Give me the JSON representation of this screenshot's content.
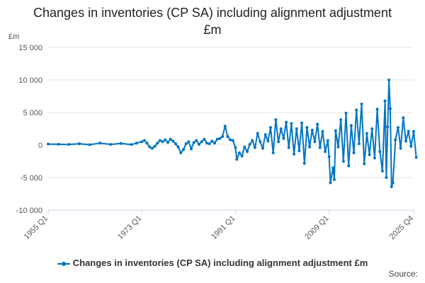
{
  "chart_data": {
    "type": "line",
    "title": "Changes in inventories (CP SA) including alignment adjustment £m",
    "ylabel": "£m",
    "xlabel": "",
    "ylim": [
      -10000,
      15000
    ],
    "yticks": [
      15000,
      10000,
      5000,
      0,
      -5000,
      -10000
    ],
    "ytick_labels": [
      "15 000",
      "10 000",
      "5 000",
      "0",
      "-5 000",
      "-10 000"
    ],
    "xlim_index": [
      0,
      281
    ],
    "xticks": [
      {
        "label": "1955 Q1",
        "index": 0
      },
      {
        "label": "1973 Q1",
        "index": 72
      },
      {
        "label": "1991 Q1",
        "index": 144
      },
      {
        "label": "2009 Q1",
        "index": 216
      },
      {
        "label": "2025 Q4",
        "index": 281
      }
    ],
    "series": [
      {
        "name": "Changes in inventories (CP SA) including alignment adjustment £m",
        "color": "#0075c2",
        "points": [
          {
            "q": "1955 Q1",
            "v": 150
          },
          {
            "q": "1957 Q1",
            "v": 120
          },
          {
            "q": "1959 Q1",
            "v": 90
          },
          {
            "q": "1961 Q1",
            "v": 200
          },
          {
            "q": "1963 Q1",
            "v": 60
          },
          {
            "q": "1965 Q1",
            "v": 300
          },
          {
            "q": "1967 Q1",
            "v": 100
          },
          {
            "q": "1969 Q1",
            "v": 250
          },
          {
            "q": "1971 Q1",
            "v": 80
          },
          {
            "q": "1972 Q1",
            "v": 300
          },
          {
            "q": "1973 Q1",
            "v": 500
          },
          {
            "q": "1973 Q3",
            "v": 700
          },
          {
            "q": "1974 Q1",
            "v": 300
          },
          {
            "q": "1974 Q3",
            "v": -300
          },
          {
            "q": "1975 Q1",
            "v": -500
          },
          {
            "q": "1975 Q3",
            "v": -200
          },
          {
            "q": "1976 Q1",
            "v": 300
          },
          {
            "q": "1976 Q3",
            "v": 700
          },
          {
            "q": "1977 Q1",
            "v": 500
          },
          {
            "q": "1977 Q3",
            "v": 800
          },
          {
            "q": "1978 Q1",
            "v": 400
          },
          {
            "q": "1978 Q3",
            "v": 900
          },
          {
            "q": "1979 Q1",
            "v": 600
          },
          {
            "q": "1979 Q3",
            "v": 200
          },
          {
            "q": "1980 Q1",
            "v": -300
          },
          {
            "q": "1980 Q3",
            "v": -1200
          },
          {
            "q": "1981 Q1",
            "v": -700
          },
          {
            "q": "1981 Q3",
            "v": 200
          },
          {
            "q": "1982 Q1",
            "v": 500
          },
          {
            "q": "1982 Q3",
            "v": -600
          },
          {
            "q": "1983 Q1",
            "v": 400
          },
          {
            "q": "1983 Q3",
            "v": 700
          },
          {
            "q": "1984 Q1",
            "v": 100
          },
          {
            "q": "1984 Q3",
            "v": 500
          },
          {
            "q": "1985 Q1",
            "v": 900
          },
          {
            "q": "1985 Q3",
            "v": 300
          },
          {
            "q": "1986 Q1",
            "v": 200
          },
          {
            "q": "1986 Q3",
            "v": 600
          },
          {
            "q": "1987 Q1",
            "v": 300
          },
          {
            "q": "1987 Q3",
            "v": 900
          },
          {
            "q": "1988 Q1",
            "v": 1000
          },
          {
            "q": "1988 Q3",
            "v": 1300
          },
          {
            "q": "1989 Q1",
            "v": 2900
          },
          {
            "q": "1989 Q3",
            "v": 1300
          },
          {
            "q": "1990 Q1",
            "v": 800
          },
          {
            "q": "1990 Q3",
            "v": 700
          },
          {
            "q": "1991 Q1",
            "v": -400
          },
          {
            "q": "1991 Q2",
            "v": -2200
          },
          {
            "q": "1991 Q4",
            "v": -1200
          },
          {
            "q": "1992 Q2",
            "v": -1700
          },
          {
            "q": "1992 Q4",
            "v": -300
          },
          {
            "q": "1993 Q2",
            "v": -1000
          },
          {
            "q": "1993 Q4",
            "v": 100
          },
          {
            "q": "1994 Q2",
            "v": 700
          },
          {
            "q": "1994 Q4",
            "v": -400
          },
          {
            "q": "1995 Q2",
            "v": 1800
          },
          {
            "q": "1995 Q4",
            "v": 500
          },
          {
            "q": "1996 Q2",
            "v": -500
          },
          {
            "q": "1996 Q4",
            "v": 1600
          },
          {
            "q": "1997 Q2",
            "v": 600
          },
          {
            "q": "1997 Q4",
            "v": 2700
          },
          {
            "q": "1998 Q2",
            "v": -1200
          },
          {
            "q": "1998 Q4",
            "v": 3900
          },
          {
            "q": "1999 Q2",
            "v": 500
          },
          {
            "q": "1999 Q4",
            "v": 2500
          },
          {
            "q": "2000 Q2",
            "v": 1000
          },
          {
            "q": "2000 Q4",
            "v": 3500
          },
          {
            "q": "2001 Q2",
            "v": -400
          },
          {
            "q": "2001 Q4",
            "v": 3300
          },
          {
            "q": "2002 Q2",
            "v": -1400
          },
          {
            "q": "2002 Q4",
            "v": 2500
          },
          {
            "q": "2003 Q2",
            "v": -900
          },
          {
            "q": "2003 Q4",
            "v": 3400
          },
          {
            "q": "2004 Q2",
            "v": -2800
          },
          {
            "q": "2004 Q4",
            "v": 2700
          },
          {
            "q": "2005 Q2",
            "v": -300
          },
          {
            "q": "2005 Q4",
            "v": 2300
          },
          {
            "q": "2006 Q2",
            "v": 500
          },
          {
            "q": "2006 Q4",
            "v": 3200
          },
          {
            "q": "2007 Q2",
            "v": -400
          },
          {
            "q": "2007 Q4",
            "v": 2100
          },
          {
            "q": "2008 Q2",
            "v": -1000
          },
          {
            "q": "2008 Q4",
            "v": 700
          },
          {
            "q": "2009 Q1",
            "v": -1800
          },
          {
            "q": "2009 Q2",
            "v": -5800
          },
          {
            "q": "2009 Q4",
            "v": -3500
          },
          {
            "q": "2010 Q1",
            "v": -5300
          },
          {
            "q": "2010 Q2",
            "v": 2200
          },
          {
            "q": "2010 Q4",
            "v": -300
          },
          {
            "q": "2011 Q2",
            "v": 3900
          },
          {
            "q": "2011 Q4",
            "v": -2500
          },
          {
            "q": "2012 Q2",
            "v": 4900
          },
          {
            "q": "2012 Q4",
            "v": -3200
          },
          {
            "q": "2013 Q2",
            "v": 3000
          },
          {
            "q": "2013 Q4",
            "v": -1200
          },
          {
            "q": "2014 Q2",
            "v": 5400
          },
          {
            "q": "2014 Q4",
            "v": 200
          },
          {
            "q": "2015 Q2",
            "v": 6300
          },
          {
            "q": "2015 Q4",
            "v": -2900
          },
          {
            "q": "2016 Q2",
            "v": 1800
          },
          {
            "q": "2016 Q4",
            "v": -1500
          },
          {
            "q": "2017 Q2",
            "v": 2500
          },
          {
            "q": "2017 Q4",
            "v": -2000
          },
          {
            "q": "2018 Q2",
            "v": 5500
          },
          {
            "q": "2018 Q4",
            "v": -1000
          },
          {
            "q": "2019 Q2",
            "v": -4000
          },
          {
            "q": "2019 Q4",
            "v": 6800
          },
          {
            "q": "2020 Q1",
            "v": -5000
          },
          {
            "q": "2020 Q2",
            "v": 2800
          },
          {
            "q": "2020 Q3",
            "v": 10000
          },
          {
            "q": "2020 Q4",
            "v": 5600
          },
          {
            "q": "2021 Q1",
            "v": -6400
          },
          {
            "q": "2021 Q2",
            "v": -5800
          },
          {
            "q": "2021 Q4",
            "v": 800
          },
          {
            "q": "2022 Q2",
            "v": 2700
          },
          {
            "q": "2022 Q4",
            "v": -500
          },
          {
            "q": "2023 Q2",
            "v": 4200
          },
          {
            "q": "2023 Q4",
            "v": 600
          },
          {
            "q": "2024 Q2",
            "v": 2100
          },
          {
            "q": "2024 Q4",
            "v": -200
          },
          {
            "q": "2025 Q2",
            "v": 2100
          },
          {
            "q": "2025 Q4",
            "v": -1900
          }
        ]
      }
    ],
    "legend_position": "bottom",
    "source_label": "Source:"
  }
}
